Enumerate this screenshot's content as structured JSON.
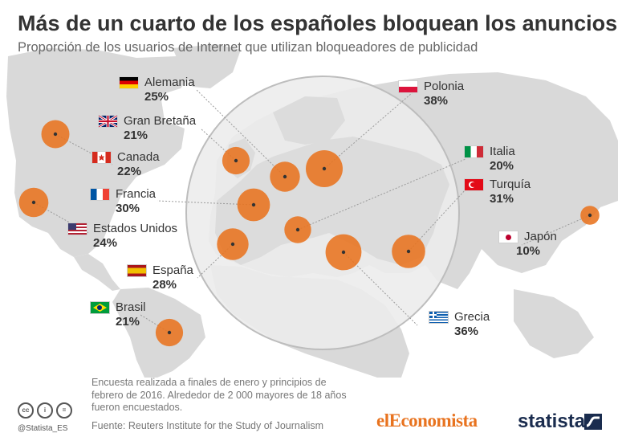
{
  "title": "Más de un cuarto de los españoles bloquean los anuncios",
  "subtitle": "Proporción de los usuarios de Internet que utilizan bloqueadores de publicidad",
  "colors": {
    "bubble": "#e8731f",
    "land": "#d9d9d9",
    "land_dark": "#cfcfcf",
    "title": "#333333",
    "subtitle": "#666666"
  },
  "chart_data": {
    "type": "map",
    "unit": "%",
    "countries": [
      {
        "name": "Alemania",
        "value": 25,
        "flag": "flag-germany-icon"
      },
      {
        "name": "Gran Bretaña",
        "value": 21,
        "flag": "flag-uk-icon"
      },
      {
        "name": "Canada",
        "value": 22,
        "flag": "flag-canada-icon"
      },
      {
        "name": "Francia",
        "value": 30,
        "flag": "flag-france-icon"
      },
      {
        "name": "Estados Unidos",
        "value": 24,
        "flag": "flag-usa-icon"
      },
      {
        "name": "España",
        "value": 28,
        "flag": "flag-spain-icon"
      },
      {
        "name": "Brasil",
        "value": 21,
        "flag": "flag-brazil-icon"
      },
      {
        "name": "Polonia",
        "value": 38,
        "flag": "flag-poland-icon"
      },
      {
        "name": "Italia",
        "value": 20,
        "flag": "flag-italy-icon"
      },
      {
        "name": "Turquía",
        "value": 31,
        "flag": "flag-turkey-icon"
      },
      {
        "name": "Japón",
        "value": 10,
        "flag": "flag-japan-icon"
      },
      {
        "name": "Grecia",
        "value": 36,
        "flag": "flag-greece-icon"
      }
    ]
  },
  "labels": {
    "alemania": {
      "name": "Alemania",
      "pct": "25%"
    },
    "granbretana": {
      "name": "Gran Bretaña",
      "pct": "21%"
    },
    "canada": {
      "name": "Canada",
      "pct": "22%"
    },
    "francia": {
      "name": "Francia",
      "pct": "30%"
    },
    "eeuu": {
      "name": "Estados Unidos",
      "pct": "24%"
    },
    "espana": {
      "name": "España",
      "pct": "28%"
    },
    "brasil": {
      "name": "Brasil",
      "pct": "21%"
    },
    "polonia": {
      "name": "Polonia",
      "pct": "38%"
    },
    "italia": {
      "name": "Italia",
      "pct": "20%"
    },
    "turquia": {
      "name": "Turquía",
      "pct": "31%"
    },
    "japon": {
      "name": "Japón",
      "pct": "10%"
    },
    "grecia": {
      "name": "Grecia",
      "pct": "36%"
    }
  },
  "footer": {
    "note": "Encuesta realizada a finales de enero y principios de febrero de 2016. Alrededor de 2 000 mayores de 18 años fueron encuestados.",
    "source": "Fuente: Reuters Institute for the Study of Journalism",
    "handle": "@Statista_ES",
    "logo_eleconomista": "elEconomista",
    "logo_statista": "statista"
  }
}
